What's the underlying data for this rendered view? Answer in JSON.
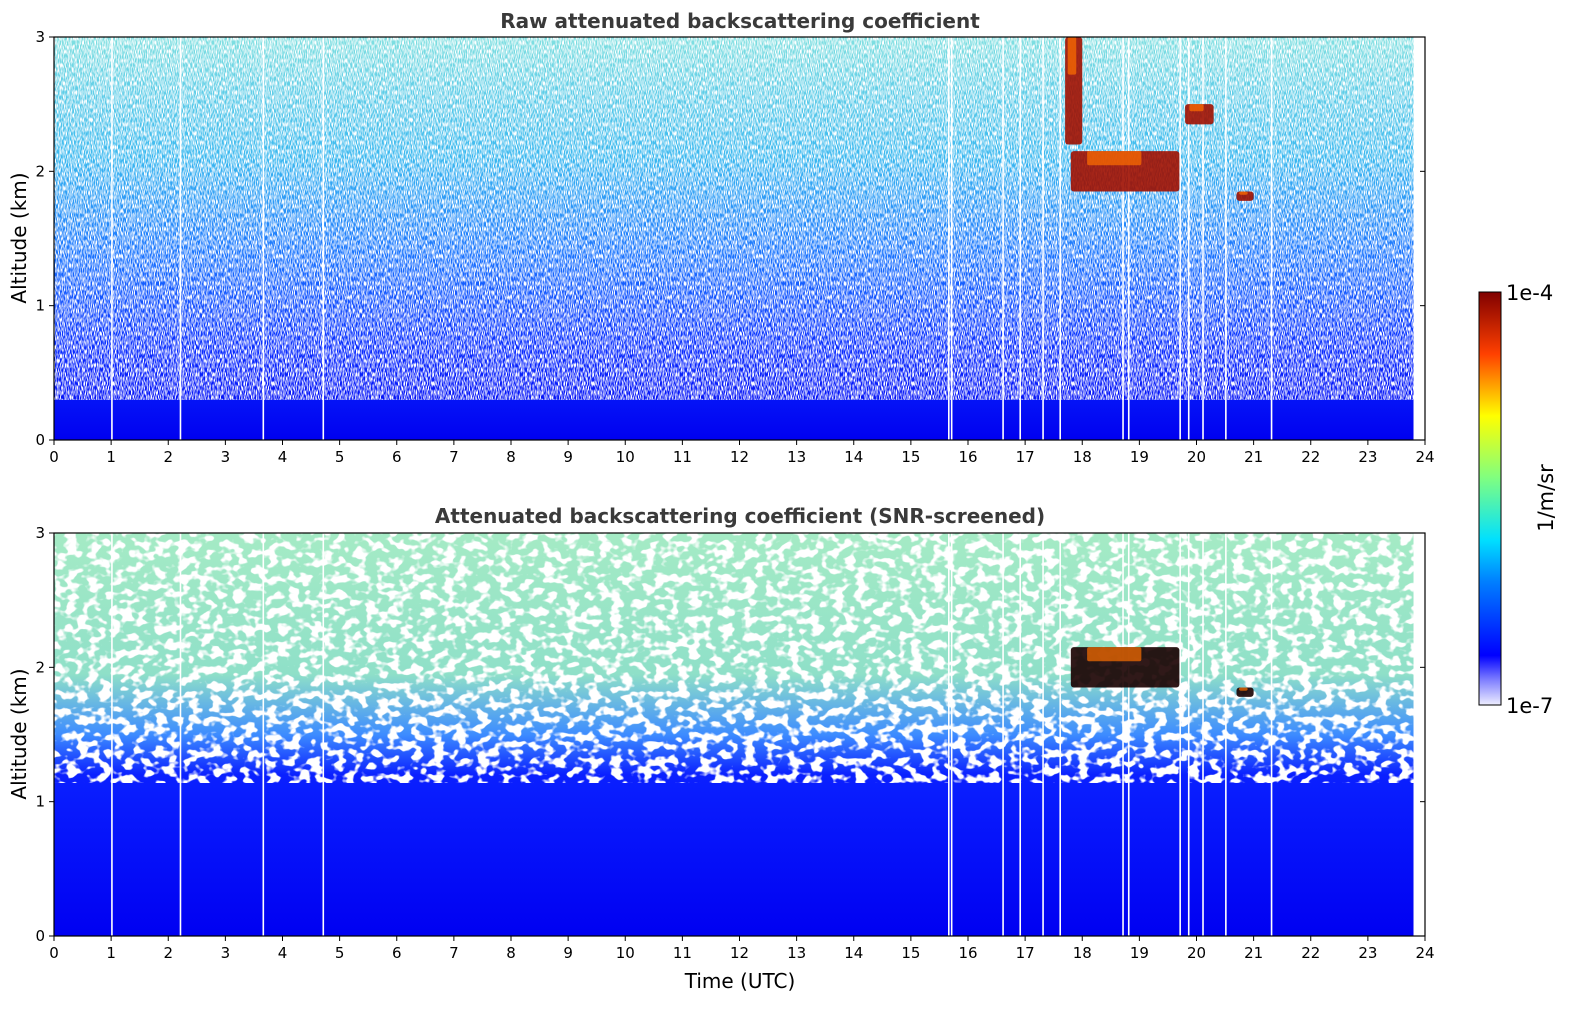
{
  "chart_data": [
    {
      "type": "heatmap",
      "title": "Raw attenuated backscattering coefficient",
      "xlabel": "",
      "ylabel": "Altitude (km)",
      "xlim": [
        0,
        24
      ],
      "ylim": [
        0,
        3
      ],
      "x_ticks": [
        "0",
        "1",
        "2",
        "3",
        "4",
        "5",
        "6",
        "7",
        "8",
        "9",
        "10",
        "11",
        "12",
        "13",
        "14",
        "15",
        "16",
        "17",
        "18",
        "19",
        "20",
        "21",
        "22",
        "23",
        "24"
      ],
      "y_ticks": [
        "0",
        "1",
        "2",
        "3"
      ],
      "features": [
        {
          "label": "surface aerosol layer",
          "x": [
            0,
            23.8
          ],
          "y": [
            0,
            0.4
          ]
        },
        {
          "label": "cloud",
          "x": [
            17.8,
            19.7
          ],
          "y": [
            1.85,
            2.15
          ]
        },
        {
          "label": "cloud",
          "x": [
            17.7,
            18.0
          ],
          "y": [
            2.2,
            3.0
          ]
        },
        {
          "label": "cloud",
          "x": [
            20.7,
            21.0
          ],
          "y": [
            1.78,
            1.85
          ]
        },
        {
          "label": "cloud",
          "x": [
            19.8,
            20.3
          ],
          "y": [
            2.35,
            2.5
          ]
        }
      ]
    },
    {
      "type": "heatmap",
      "title": "Attenuated backscattering coefficient (SNR-screened)",
      "xlabel": "Time (UTC)",
      "ylabel": "Altitude (km)",
      "xlim": [
        0,
        24
      ],
      "ylim": [
        0,
        3
      ],
      "x_ticks": [
        "0",
        "1",
        "2",
        "3",
        "4",
        "5",
        "6",
        "7",
        "8",
        "9",
        "10",
        "11",
        "12",
        "13",
        "14",
        "15",
        "16",
        "17",
        "18",
        "19",
        "20",
        "21",
        "22",
        "23",
        "24"
      ],
      "y_ticks": [
        "0",
        "1",
        "2",
        "3"
      ],
      "features": [
        {
          "label": "surface aerosol layer",
          "x": [
            0,
            23.8
          ],
          "y": [
            0,
            1.5
          ]
        },
        {
          "label": "cloud",
          "x": [
            17.8,
            19.7
          ],
          "y": [
            1.85,
            2.15
          ]
        },
        {
          "label": "cloud",
          "x": [
            20.7,
            21.0
          ],
          "y": [
            1.78,
            1.85
          ]
        }
      ]
    }
  ],
  "colorbar": {
    "label": "1/m/sr",
    "max_label": "1e-4",
    "min_label": "1e-7",
    "scale": "log",
    "range": [
      1e-07,
      0.0001
    ]
  }
}
